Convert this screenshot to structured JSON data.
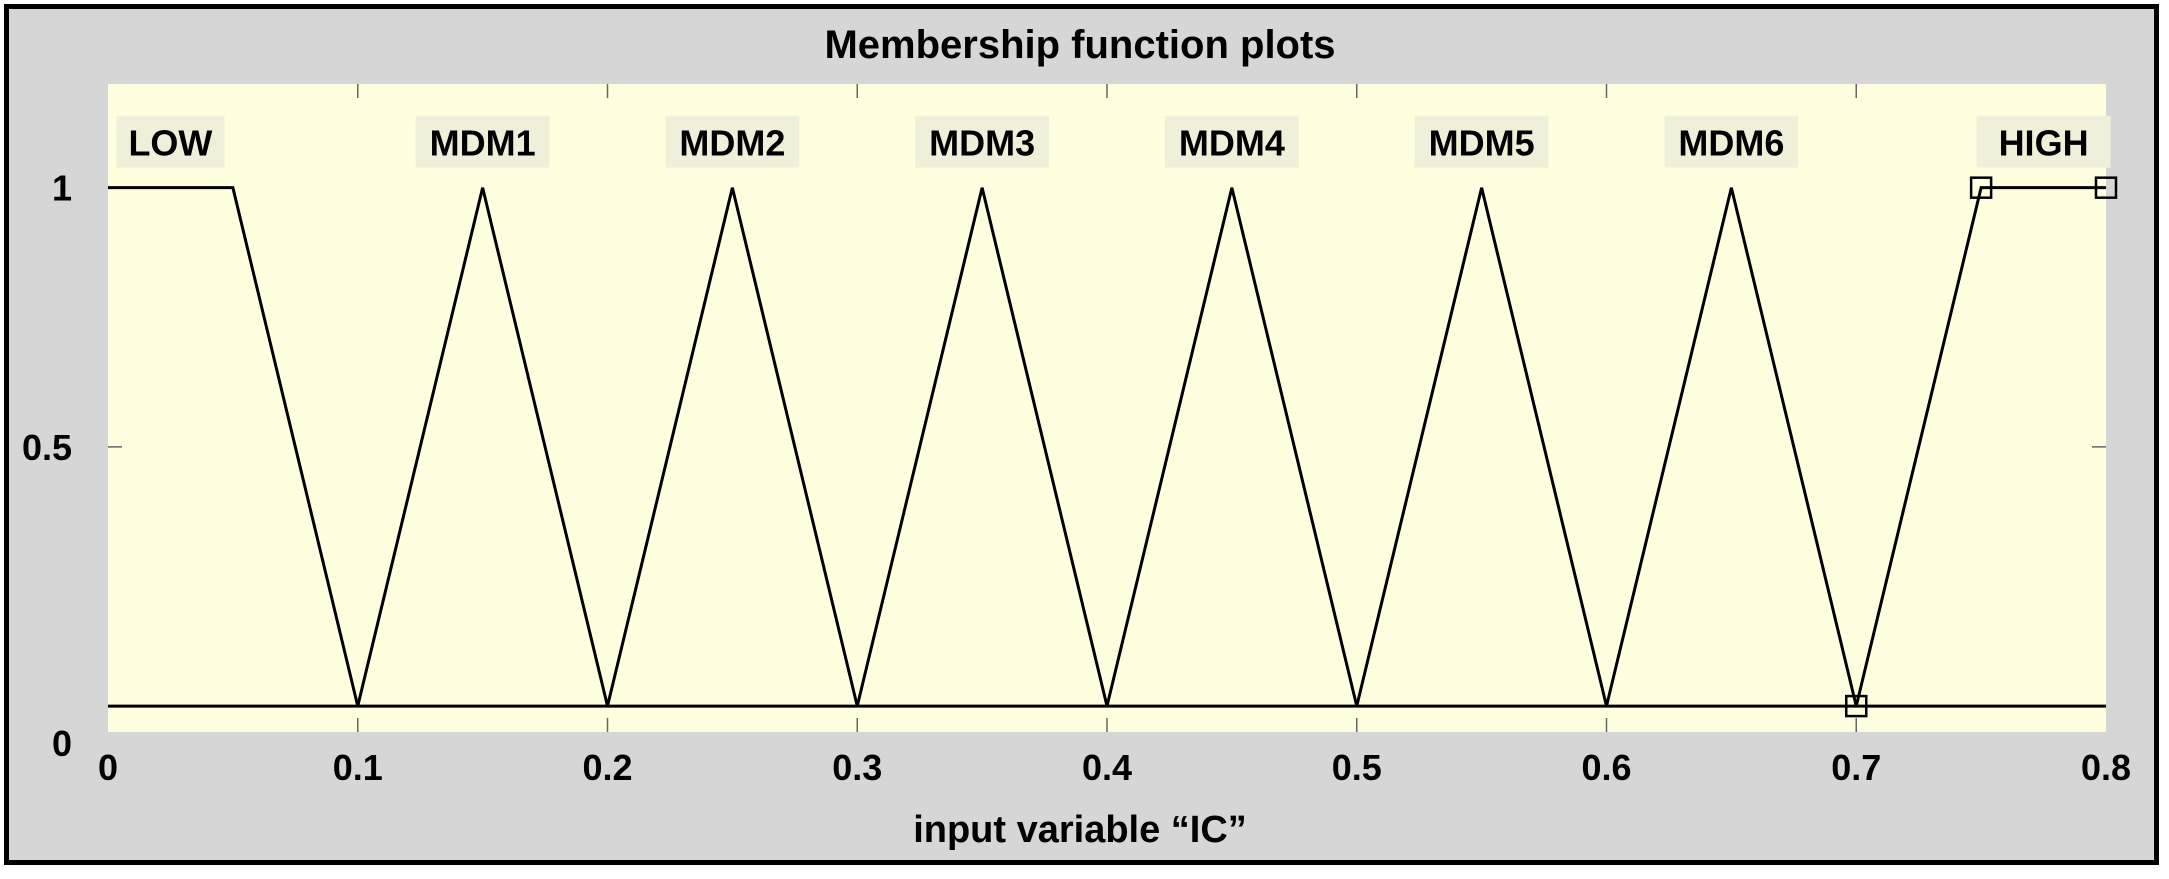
{
  "chart_data": {
    "type": "line",
    "title": "Membership function plots",
    "xlabel": "input variable “IC”",
    "ylabel": "",
    "xlim": [
      0,
      0.8
    ],
    "ylim": [
      -0.05,
      1.2
    ],
    "x_ticks": [
      0,
      0.1,
      0.2,
      0.3,
      0.4,
      0.5,
      0.6,
      0.7,
      0.8
    ],
    "x_tick_labels": [
      "0",
      "0.1",
      "0.2",
      "0.3",
      "0.4",
      "0.5",
      "0.6",
      "0.7",
      "0.8"
    ],
    "y_ticks": [
      0,
      0.5,
      1
    ],
    "y_tick_labels": [
      "0",
      "0.5",
      "1"
    ],
    "grid": false,
    "colors": {
      "plot_bg": "#ffffe0",
      "frame_bg": "#d6d6d6",
      "label_bg": "#f0f0da",
      "line": "#000000"
    },
    "series": [
      {
        "name": "LOW",
        "type": "trapmf",
        "x": [
          0,
          0.05,
          0.1
        ],
        "y": [
          1,
          1,
          0
        ]
      },
      {
        "name": "MDM1",
        "type": "trimf",
        "x": [
          0.1,
          0.15,
          0.2
        ],
        "y": [
          0,
          1,
          0
        ]
      },
      {
        "name": "MDM2",
        "type": "trimf",
        "x": [
          0.2,
          0.25,
          0.3
        ],
        "y": [
          0,
          1,
          0
        ]
      },
      {
        "name": "MDM3",
        "type": "trimf",
        "x": [
          0.3,
          0.35,
          0.4
        ],
        "y": [
          0,
          1,
          0
        ]
      },
      {
        "name": "MDM4",
        "type": "trimf",
        "x": [
          0.4,
          0.45,
          0.5
        ],
        "y": [
          0,
          1,
          0
        ]
      },
      {
        "name": "MDM5",
        "type": "trimf",
        "x": [
          0.5,
          0.55,
          0.6
        ],
        "y": [
          0,
          1,
          0
        ]
      },
      {
        "name": "MDM6",
        "type": "trimf",
        "x": [
          0.6,
          0.65,
          0.7
        ],
        "y": [
          0,
          1,
          0
        ]
      },
      {
        "name": "HIGH",
        "type": "trapmf",
        "x": [
          0.7,
          0.75,
          0.8
        ],
        "y": [
          0,
          1,
          1
        ],
        "selected": true
      }
    ]
  }
}
